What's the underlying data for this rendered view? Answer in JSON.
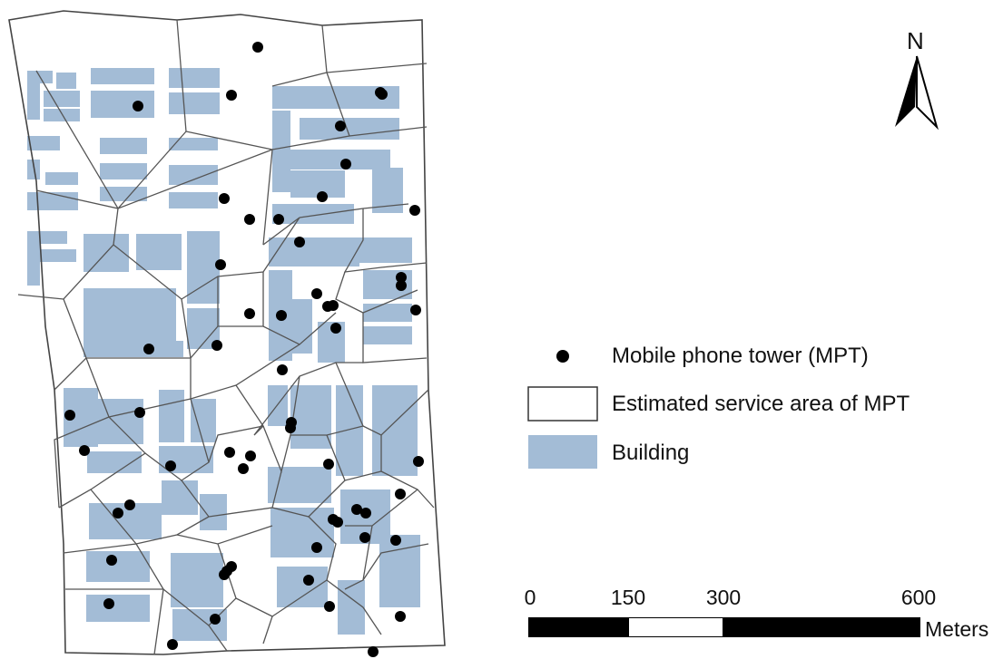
{
  "north_arrow": {
    "label": "N"
  },
  "legend": {
    "items": [
      {
        "symbol": "tower-dot",
        "label": "Mobile phone tower (MPT)"
      },
      {
        "symbol": "polygon-outline",
        "label": "Estimated service area of MPT"
      },
      {
        "symbol": "building-fill",
        "label": "Building"
      }
    ]
  },
  "scale_bar": {
    "ticks": [
      "0",
      "150",
      "300",
      "600"
    ],
    "unit": "Meters"
  },
  "colors": {
    "building": "#a3bcd6",
    "tower": "#000000",
    "service_area_outline": "#555555"
  },
  "map": {
    "tower_count": 58
  }
}
